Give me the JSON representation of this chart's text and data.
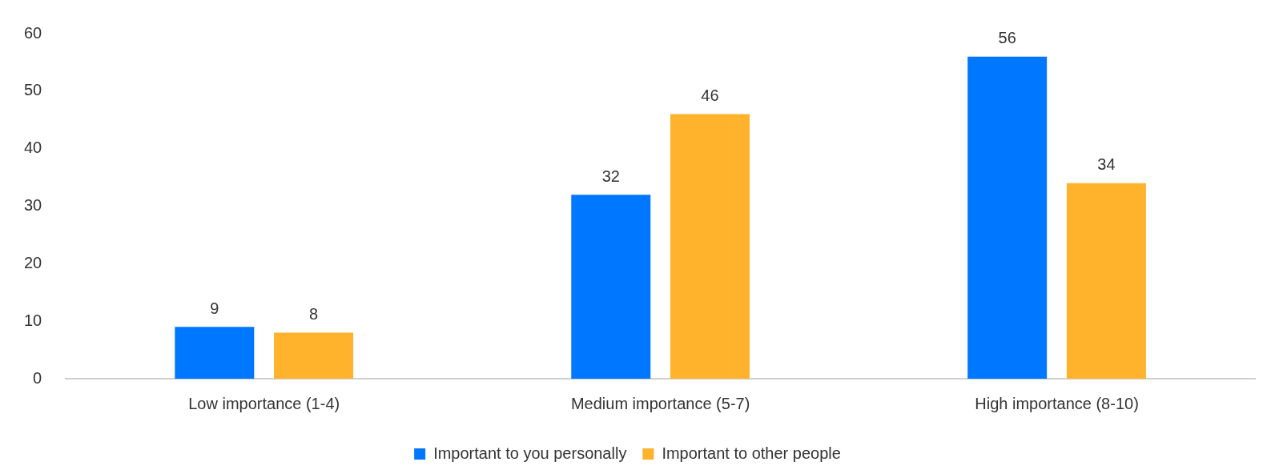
{
  "chart_data": {
    "type": "bar",
    "categories": [
      "Low importance (1-4)",
      "Medium importance (5-7)",
      "High importance (8-10)"
    ],
    "series": [
      {
        "name": "Important to you personally",
        "color": "#0077ff",
        "values": [
          9,
          32,
          56
        ]
      },
      {
        "name": "Important to other people",
        "color": "#ffb22b",
        "values": [
          8,
          46,
          34
        ]
      }
    ],
    "ylim": [
      0,
      60
    ],
    "yticks": [
      0,
      10,
      20,
      30,
      40,
      50,
      60
    ],
    "grid": false,
    "legend": "bottom",
    "data_labels": true
  }
}
